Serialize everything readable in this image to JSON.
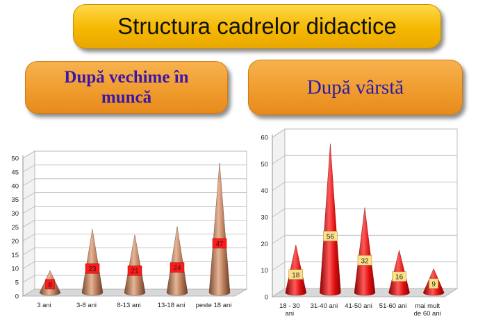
{
  "header": {
    "title": "Structura cadrelor didactice"
  },
  "subtitles": {
    "left": "După vechime în muncă",
    "right": "După vârstă"
  },
  "colors": {
    "cone_left": "#b87a5a",
    "cone_right": "#e01010",
    "label_left_bg": "#ff1a1a",
    "label_right_bg": "#ffe08a",
    "title_bg": "#f5b800",
    "subtitle_bg": "#ef9a2c"
  },
  "chart_data": [
    {
      "type": "bar",
      "categories": [
        "3 ani",
        "3-8 ani",
        "8-13 ani",
        "13-18 ani",
        "peste 18 ani"
      ],
      "values": [
        8,
        23,
        21,
        24,
        47
      ],
      "ylim": [
        0,
        50
      ],
      "yticks": [
        0,
        5,
        10,
        15,
        20,
        25,
        30,
        35,
        40,
        45,
        50
      ],
      "grid": true,
      "title": "",
      "xlabel": "",
      "ylabel": ""
    },
    {
      "type": "bar",
      "categories": [
        "18 - 30 ani",
        "31-40 ani",
        "41-50 ani",
        "51-60 ani",
        "mai mult de 60 ani"
      ],
      "values": [
        18,
        56,
        32,
        16,
        9
      ],
      "ylim": [
        0,
        60
      ],
      "yticks": [
        0,
        10,
        20,
        30,
        40,
        50,
        60
      ],
      "grid": true,
      "title": "",
      "xlabel": "",
      "ylabel": ""
    }
  ]
}
